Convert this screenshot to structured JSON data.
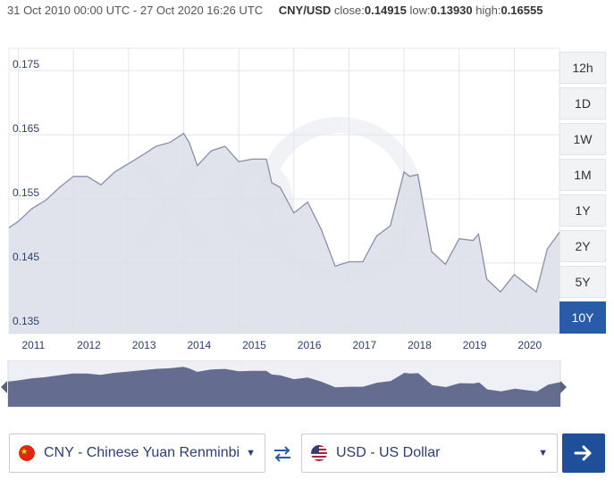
{
  "header": {
    "date_range": "31 Oct 2010 00:00 UTC - 27 Oct 2020 16:26 UTC",
    "pair": "CNY/USD",
    "close_label": "close:",
    "close_value": "0.14915",
    "low_label": "low:",
    "low_value": "0.13930",
    "high_label": "high:",
    "high_value": "0.16555"
  },
  "range_buttons": [
    "12h",
    "1D",
    "1W",
    "1M",
    "1Y",
    "2Y",
    "5Y",
    "10Y"
  ],
  "active_range": "10Y",
  "from_currency": {
    "label": "CNY - Chinese Yuan Renminbi",
    "flag": "china-flag-icon"
  },
  "to_currency": {
    "label": "USD - US Dollar",
    "flag": "us-flag-icon"
  },
  "icons": {
    "swap": "swap-arrows-icon",
    "go": "arrow-right-icon",
    "dropdown": "chevron-down-icon"
  },
  "colors": {
    "accent": "#2a5ba8",
    "line": "#8a8fa8",
    "area": "#dcdee9",
    "navigator_fill": "#646c90"
  },
  "chart_data": {
    "type": "area",
    "title": "",
    "xlabel": "",
    "ylabel": "",
    "ylim": [
      0.134,
      0.1785
    ],
    "xlim": [
      2010.83,
      2020.82
    ],
    "y_ticks": [
      0.135,
      0.145,
      0.155,
      0.165,
      0.175
    ],
    "y_tick_labels": [
      "0.135",
      "0.145",
      "0.155",
      "0.165",
      "0.175"
    ],
    "x_ticks": [
      2011,
      2012,
      2013,
      2014,
      2015,
      2016,
      2017,
      2018,
      2019,
      2020
    ],
    "grid": true,
    "legend": "none",
    "series": [
      {
        "x": [
          2010.83,
          2011.0,
          2011.25,
          2011.5,
          2011.75,
          2012.0,
          2012.25,
          2012.5,
          2012.75,
          2013.0,
          2013.25,
          2013.5,
          2013.75,
          2014.0,
          2014.1,
          2014.25,
          2014.5,
          2014.75,
          2015.0,
          2015.25,
          2015.5,
          2015.6,
          2015.75,
          2016.0,
          2016.25,
          2016.5,
          2016.75,
          2017.0,
          2017.25,
          2017.5,
          2017.75,
          2018.0,
          2018.1,
          2018.25,
          2018.5,
          2018.75,
          2019.0,
          2019.25,
          2019.35,
          2019.5,
          2019.75,
          2020.0,
          2020.25,
          2020.4,
          2020.6,
          2020.82
        ],
        "values": [
          0.1505,
          0.1515,
          0.1535,
          0.1548,
          0.1568,
          0.1585,
          0.1585,
          0.1572,
          0.1592,
          0.1605,
          0.1618,
          0.1632,
          0.1638,
          0.1652,
          0.1638,
          0.1602,
          0.1625,
          0.1632,
          0.1608,
          0.1612,
          0.1612,
          0.1575,
          0.1568,
          0.1528,
          0.1545,
          0.1502,
          0.1445,
          0.1452,
          0.1452,
          0.1492,
          0.1508,
          0.1592,
          0.1585,
          0.1588,
          0.1468,
          0.1448,
          0.1488,
          0.1485,
          0.1495,
          0.1425,
          0.1405,
          0.1432,
          0.1415,
          0.1405,
          0.1472,
          0.1498
        ]
      }
    ]
  }
}
